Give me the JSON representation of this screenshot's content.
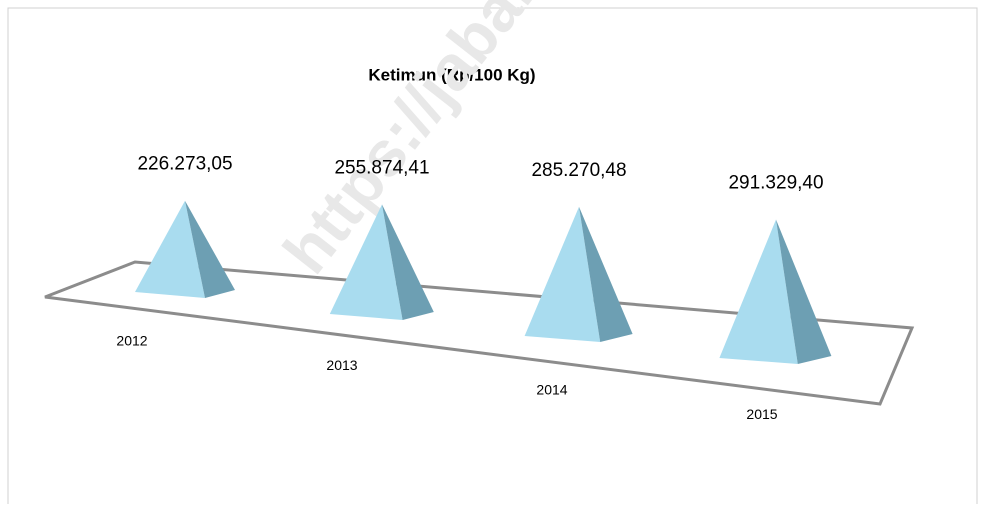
{
  "chart_data": {
    "type": "pyramid",
    "title": "Ketimun (Rp/100 Kg)",
    "categories": [
      "2012",
      "2013",
      "2014",
      "2015"
    ],
    "values": [
      226273.05,
      255874.41,
      285270.48,
      291329.4
    ],
    "value_labels": [
      "226.273,05",
      "255.874,41",
      "285.270,48",
      "291.329,40"
    ],
    "color": "#a9dcef",
    "watermark": "https://jabar.b"
  }
}
